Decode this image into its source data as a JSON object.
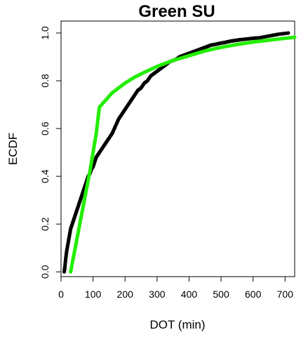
{
  "chart_data": {
    "type": "line",
    "title": "Green SU",
    "xlabel": "DOT (min)",
    "ylabel": "ECDF",
    "xlim": [
      0,
      730
    ],
    "ylim": [
      -0.02,
      1.05
    ],
    "x_ticks": [
      0,
      100,
      200,
      300,
      400,
      500,
      600,
      700
    ],
    "y_ticks": [
      0.0,
      0.2,
      0.4,
      0.6,
      0.8,
      1.0
    ],
    "x_tick_labels": [
      "0",
      "100",
      "200",
      "300",
      "400",
      "500",
      "600",
      "700"
    ],
    "y_tick_labels": [
      "0.0",
      "0.2",
      "0.4",
      "0.6",
      "0.8",
      "1.0"
    ],
    "grid": false,
    "series": [
      {
        "style": "points",
        "color": "#000000",
        "x": [
          10,
          12,
          15,
          18,
          22,
          26,
          30,
          35,
          40,
          45,
          50,
          55,
          60,
          65,
          70,
          75,
          80,
          85,
          90,
          95,
          100,
          105,
          110,
          115,
          120,
          130,
          140,
          150,
          160,
          170,
          180,
          190,
          200,
          210,
          220,
          230,
          240,
          250,
          260,
          270,
          280,
          290,
          300,
          310,
          320,
          330,
          340,
          350,
          360,
          370,
          380,
          390,
          400,
          410,
          420,
          430,
          440,
          450,
          460,
          470,
          480,
          490,
          500,
          510,
          520,
          530,
          540,
          550,
          560,
          580,
          600,
          620,
          640,
          660,
          680,
          710
        ],
        "y": [
          0.0,
          0.02,
          0.06,
          0.09,
          0.12,
          0.15,
          0.18,
          0.2,
          0.22,
          0.24,
          0.26,
          0.28,
          0.3,
          0.32,
          0.34,
          0.36,
          0.38,
          0.4,
          0.41,
          0.43,
          0.44,
          0.46,
          0.48,
          0.49,
          0.5,
          0.52,
          0.54,
          0.56,
          0.58,
          0.61,
          0.64,
          0.66,
          0.68,
          0.7,
          0.72,
          0.74,
          0.76,
          0.77,
          0.79,
          0.8,
          0.82,
          0.83,
          0.84,
          0.85,
          0.86,
          0.87,
          0.88,
          0.885,
          0.89,
          0.9,
          0.905,
          0.91,
          0.915,
          0.92,
          0.925,
          0.93,
          0.935,
          0.94,
          0.945,
          0.95,
          0.952,
          0.955,
          0.958,
          0.96,
          0.963,
          0.966,
          0.968,
          0.97,
          0.972,
          0.975,
          0.978,
          0.98,
          0.985,
          0.99,
          0.995,
          1.0
        ]
      },
      {
        "style": "line",
        "color": "#22ee00",
        "x": [
          30,
          50,
          70,
          90,
          110,
          120,
          140,
          160,
          180,
          200,
          230,
          260,
          300,
          350,
          400,
          450,
          500,
          550,
          600,
          650,
          700,
          730
        ],
        "y": [
          0.0,
          0.14,
          0.28,
          0.42,
          0.58,
          0.69,
          0.72,
          0.75,
          0.77,
          0.79,
          0.815,
          0.835,
          0.86,
          0.885,
          0.905,
          0.925,
          0.94,
          0.952,
          0.962,
          0.97,
          0.978,
          0.982
        ]
      }
    ]
  }
}
